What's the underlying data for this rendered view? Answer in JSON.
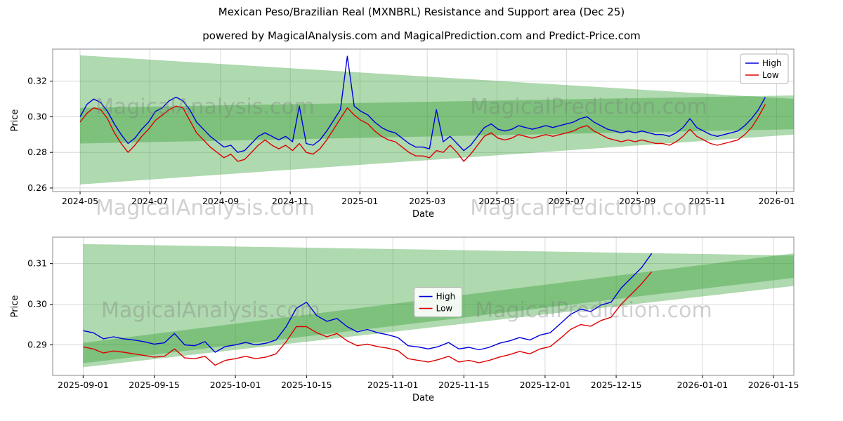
{
  "title": "Mexican Peso/Brazilian Real (MXNBRL) Resistance and Support area (Dec 25)",
  "subtitle": "powered by MagicalAnalysis.com and MagicalPrediction.com and Predict-Price.com",
  "watermarks": {
    "left": "MagicalAnalysis.com",
    "right": "MagicalPrediction.com"
  },
  "colors": {
    "high": "#0000dd",
    "low": "#dd0000",
    "band": "#2e9b2e",
    "grid": "#d0d0d0",
    "spine": "#888888",
    "text": "#000000",
    "watermark": "#7a7a7a"
  },
  "chart_data": [
    {
      "name": "overview-chart",
      "type": "line",
      "xlabel": "Date",
      "ylabel": "Price",
      "xlim": [
        "2024-04-07",
        "2026-01-16"
      ],
      "ylim": [
        0.258,
        0.338
      ],
      "yticks": [
        0.26,
        0.28,
        0.3,
        0.32
      ],
      "xticks": [
        {
          "d": "2024-05-01",
          "label": "2024-05"
        },
        {
          "d": "2024-07-01",
          "label": "2024-07"
        },
        {
          "d": "2024-09-01",
          "label": "2024-09"
        },
        {
          "d": "2024-11-01",
          "label": "2024-11"
        },
        {
          "d": "2025-01-01",
          "label": "2025-01"
        },
        {
          "d": "2025-03-01",
          "label": "2025-03"
        },
        {
          "d": "2025-05-01",
          "label": "2025-05"
        },
        {
          "d": "2025-07-01",
          "label": "2025-07"
        },
        {
          "d": "2025-09-01",
          "label": "2025-09"
        },
        {
          "d": "2025-11-01",
          "label": "2025-11"
        },
        {
          "d": "2026-01-01",
          "label": "2026-01"
        }
      ],
      "x_start": "2024-05-01",
      "x_step_days": 6,
      "series": [
        {
          "name": "High",
          "color_key": "high",
          "values": [
            0.3,
            0.307,
            0.31,
            0.308,
            0.303,
            0.296,
            0.29,
            0.285,
            0.288,
            0.293,
            0.297,
            0.303,
            0.305,
            0.309,
            0.311,
            0.309,
            0.304,
            0.297,
            0.293,
            0.289,
            0.286,
            0.283,
            0.284,
            0.28,
            0.281,
            0.285,
            0.289,
            0.291,
            0.289,
            0.287,
            0.289,
            0.286,
            0.306,
            0.285,
            0.284,
            0.287,
            0.292,
            0.298,
            0.304,
            0.334,
            0.306,
            0.303,
            0.301,
            0.297,
            0.294,
            0.292,
            0.291,
            0.288,
            0.285,
            0.283,
            0.283,
            0.282,
            0.304,
            0.286,
            0.289,
            0.285,
            0.281,
            0.284,
            0.289,
            0.294,
            0.296,
            0.293,
            0.292,
            0.293,
            0.295,
            0.294,
            0.293,
            0.294,
            0.295,
            0.294,
            0.295,
            0.296,
            0.297,
            0.299,
            0.3,
            0.297,
            0.295,
            0.293,
            0.292,
            0.291,
            0.292,
            0.291,
            0.292,
            0.291,
            0.29,
            0.29,
            0.289,
            0.291,
            0.294,
            0.299,
            0.294,
            0.292,
            0.29,
            0.289,
            0.29,
            0.291,
            0.292,
            0.295,
            0.299,
            0.304,
            0.311
          ]
        },
        {
          "name": "Low",
          "color_key": "low",
          "values": [
            0.297,
            0.302,
            0.305,
            0.304,
            0.299,
            0.291,
            0.285,
            0.28,
            0.284,
            0.289,
            0.293,
            0.298,
            0.301,
            0.304,
            0.306,
            0.305,
            0.298,
            0.291,
            0.287,
            0.283,
            0.28,
            0.277,
            0.279,
            0.275,
            0.276,
            0.28,
            0.284,
            0.287,
            0.284,
            0.282,
            0.284,
            0.281,
            0.285,
            0.28,
            0.279,
            0.282,
            0.287,
            0.293,
            0.299,
            0.305,
            0.301,
            0.298,
            0.296,
            0.292,
            0.289,
            0.287,
            0.286,
            0.283,
            0.28,
            0.278,
            0.278,
            0.277,
            0.281,
            0.28,
            0.284,
            0.28,
            0.275,
            0.279,
            0.284,
            0.289,
            0.291,
            0.288,
            0.287,
            0.288,
            0.29,
            0.289,
            0.288,
            0.289,
            0.29,
            0.289,
            0.29,
            0.291,
            0.292,
            0.294,
            0.295,
            0.292,
            0.29,
            0.288,
            0.287,
            0.286,
            0.287,
            0.286,
            0.287,
            0.286,
            0.285,
            0.285,
            0.284,
            0.286,
            0.289,
            0.293,
            0.289,
            0.287,
            0.285,
            0.284,
            0.285,
            0.286,
            0.287,
            0.29,
            0.294,
            0.3,
            0.307
          ]
        }
      ],
      "bands": [
        {
          "x0": "2024-05-01",
          "top": [
            0.3345,
            0.31
          ],
          "bottom": [
            0.285,
            0.293
          ]
        },
        {
          "x0": "2024-05-01",
          "top": [
            0.305,
            0.312
          ],
          "bottom": [
            0.262,
            0.29
          ]
        }
      ],
      "legend": {
        "anchor": "ne"
      }
    },
    {
      "name": "detail-chart",
      "type": "line",
      "xlabel": "Date",
      "ylabel": "Price",
      "xlim": [
        "2025-08-26",
        "2026-01-19"
      ],
      "ylim": [
        0.2825,
        0.3165
      ],
      "yticks": [
        0.29,
        0.3,
        0.31
      ],
      "xticks": [
        {
          "d": "2025-09-01",
          "label": "2025-09-01"
        },
        {
          "d": "2025-09-15",
          "label": "2025-09-15"
        },
        {
          "d": "2025-10-01",
          "label": "2025-10-01"
        },
        {
          "d": "2025-10-15",
          "label": "2025-10-15"
        },
        {
          "d": "2025-11-01",
          "label": "2025-11-01"
        },
        {
          "d": "2025-11-15",
          "label": "2025-11-15"
        },
        {
          "d": "2025-12-01",
          "label": "2025-12-01"
        },
        {
          "d": "2025-12-15",
          "label": "2025-12-15"
        },
        {
          "d": "2026-01-01",
          "label": "2026-01-01"
        },
        {
          "d": "2026-01-15",
          "label": "2026-01-15"
        }
      ],
      "x_start": "2025-09-01",
      "x_step_days": 2,
      "series": [
        {
          "name": "High",
          "color_key": "high",
          "values": [
            0.2935,
            0.293,
            0.2915,
            0.292,
            0.2915,
            0.2912,
            0.2908,
            0.2902,
            0.2905,
            0.2928,
            0.29,
            0.2898,
            0.2908,
            0.2882,
            0.2896,
            0.29,
            0.2906,
            0.29,
            0.2904,
            0.2912,
            0.2945,
            0.299,
            0.3005,
            0.2972,
            0.2958,
            0.2965,
            0.2945,
            0.2932,
            0.2938,
            0.293,
            0.2925,
            0.2918,
            0.2898,
            0.2895,
            0.289,
            0.2896,
            0.2906,
            0.289,
            0.2894,
            0.2888,
            0.2894,
            0.2904,
            0.291,
            0.2918,
            0.2912,
            0.2924,
            0.293,
            0.2952,
            0.2975,
            0.2988,
            0.2982,
            0.2998,
            0.3005,
            0.304,
            0.3065,
            0.309,
            0.3125
          ]
        },
        {
          "name": "Low",
          "color_key": "low",
          "values": [
            0.2895,
            0.289,
            0.288,
            0.2885,
            0.2882,
            0.2878,
            0.2874,
            0.287,
            0.2872,
            0.289,
            0.2868,
            0.2866,
            0.2872,
            0.285,
            0.2862,
            0.2866,
            0.2872,
            0.2866,
            0.287,
            0.2878,
            0.2908,
            0.2945,
            0.2945,
            0.293,
            0.292,
            0.2928,
            0.291,
            0.2898,
            0.2902,
            0.2896,
            0.2892,
            0.2886,
            0.2866,
            0.2862,
            0.2858,
            0.2864,
            0.2872,
            0.2858,
            0.2862,
            0.2856,
            0.2862,
            0.287,
            0.2876,
            0.2884,
            0.2878,
            0.289,
            0.2896,
            0.2916,
            0.2938,
            0.295,
            0.2946,
            0.296,
            0.2968,
            0.3,
            0.3025,
            0.305,
            0.308
          ]
        }
      ],
      "bands": [
        {
          "x0": "2025-09-01",
          "top": [
            0.3148,
            0.312
          ],
          "bottom": [
            0.2845,
            0.3045
          ]
        },
        {
          "x0": "2025-09-01",
          "top": [
            0.2905,
            0.3125
          ],
          "bottom": [
            0.2855,
            0.3065
          ]
        }
      ],
      "legend": {
        "anchor": "center",
        "fx": 0.52,
        "fy": 0.47
      }
    }
  ]
}
